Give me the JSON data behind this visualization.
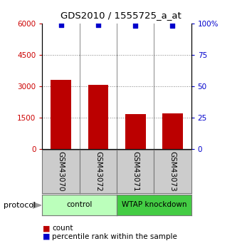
{
  "title": "GDS2010 / 1555725_a_at",
  "samples": [
    "GSM43070",
    "GSM43072",
    "GSM43071",
    "GSM43073"
  ],
  "bar_values": [
    3300,
    3050,
    1650,
    1680
  ],
  "percentile_values": [
    99,
    99,
    98,
    98
  ],
  "bar_color": "#bb0000",
  "dot_color": "#0000cc",
  "left_ylim": [
    0,
    6000
  ],
  "right_ylim": [
    0,
    100
  ],
  "left_yticks": [
    0,
    1500,
    3000,
    4500,
    6000
  ],
  "right_yticks": [
    0,
    25,
    50,
    75,
    100
  ],
  "left_yticklabels": [
    "0",
    "1500",
    "3000",
    "4500",
    "6000"
  ],
  "right_yticklabels": [
    "0",
    "25",
    "50",
    "75",
    "100%"
  ],
  "left_tick_color": "#cc0000",
  "right_tick_color": "#0000cc",
  "groups": [
    {
      "label": "control",
      "color": "#bbffbb",
      "n": 2
    },
    {
      "label": "WTAP knockdown",
      "color": "#44cc44",
      "n": 2
    }
  ],
  "protocol_label": "protocol",
  "legend_count_label": "count",
  "legend_percentile_label": "percentile rank within the sample",
  "sample_box_color": "#cccccc",
  "grid_linestyle": ":"
}
